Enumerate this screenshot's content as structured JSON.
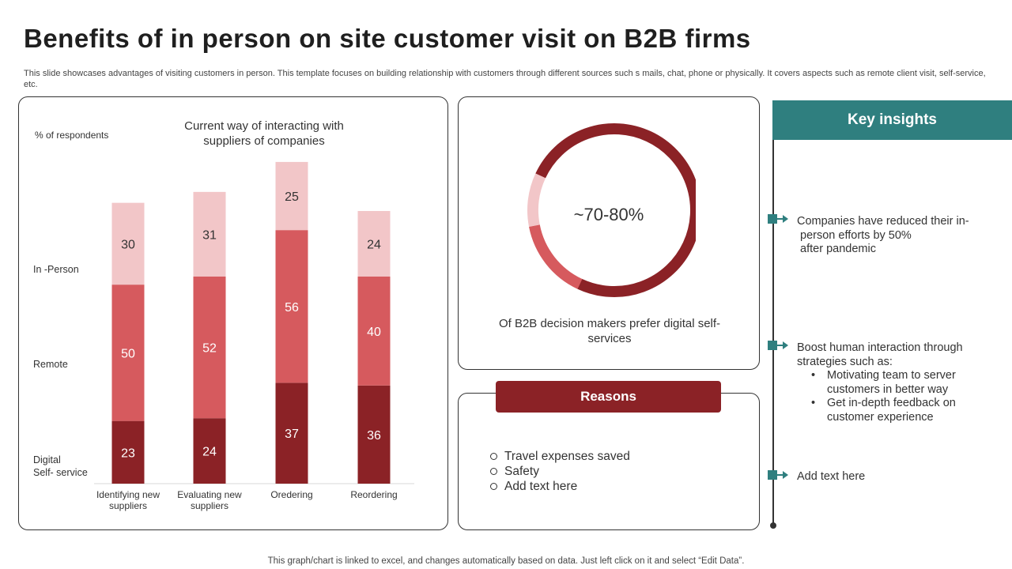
{
  "title": "Benefits of in person on site customer visit on B2B firms",
  "subtitle": "This slide showcases advantages of visiting customers in person. This template focuses on building relationship with customers through different sources such s mails, chat, phone or physically. It covers aspects such as remote client visit,  self-service, etc.",
  "footer": "This graph/chart is linked to excel,  and changes automatically based on data. Just left click on it and select “Edit Data”.",
  "colors": {
    "in_person": "#f2c6c8",
    "remote": "#d65a5e",
    "digital": "#8b2226",
    "teal": "#2f7f7f"
  },
  "chart_data": {
    "type": "bar",
    "stacked": true,
    "title": "Current way of interacting with suppliers of companies",
    "ylabel": "% of respondents",
    "categories": [
      "Identifying new suppliers",
      "Evaluating new suppliers",
      "Oredering",
      "Reordering"
    ],
    "series": [
      {
        "name": "Digital Self- service",
        "values": [
          23,
          24,
          37,
          36
        ]
      },
      {
        "name": "Remote",
        "values": [
          50,
          52,
          56,
          40
        ]
      },
      {
        "name": "In -Person",
        "values": [
          30,
          31,
          25,
          24
        ]
      }
    ],
    "legend_position": "left",
    "grid": false
  },
  "donut": {
    "value_label": "~70-80%",
    "caption": "Of B2B decision makers prefer digital self-services",
    "segments": [
      {
        "name": "digital",
        "fraction": 0.75
      },
      {
        "name": "remote",
        "fraction": 0.15
      },
      {
        "name": "in_person",
        "fraction": 0.1
      }
    ]
  },
  "reasons": {
    "header": "Reasons",
    "items": [
      "Travel expenses saved",
      "Safety",
      "Add text here"
    ]
  },
  "insights": {
    "header": "Key insights",
    "items": [
      {
        "lines": [
          "Companies have reduced their in-",
          " person efforts by 50%",
          " after pandemic"
        ]
      },
      {
        "lines": [
          "Boost human interaction through",
          "strategies such as:"
        ],
        "bullets": [
          "Motivating team to server customers in better way",
          "Get in-depth feedback on customer experience"
        ]
      },
      {
        "lines": [
          "Add text here"
        ]
      }
    ]
  }
}
